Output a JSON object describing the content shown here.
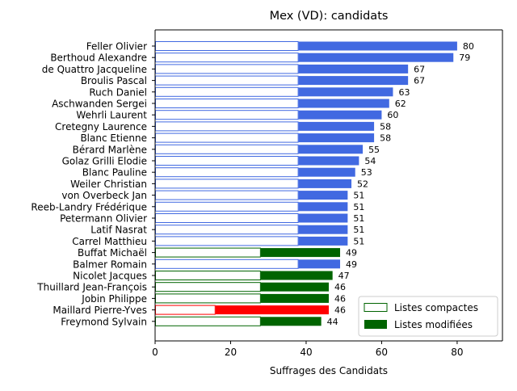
{
  "chart_data": {
    "type": "bar",
    "orientation": "horizontal",
    "stacked": true,
    "title": "Mex (VD): candidats",
    "xlabel": "Suffrages des Candidats",
    "ylabel": "",
    "xlim": [
      0,
      92
    ],
    "xticks": [
      0,
      20,
      40,
      60,
      80
    ],
    "grid": false,
    "legend_position": "bottom-right",
    "legend": [
      {
        "label": "Listes compactes",
        "style": "outline",
        "color": "#006400"
      },
      {
        "label": "Listes modifiées",
        "style": "filled",
        "color": "#006400"
      }
    ],
    "colors": {
      "blue": "#4169e1",
      "green": "#006400",
      "red": "#ff0000"
    },
    "categories": [
      "Feller Olivier",
      "Berthoud Alexandre",
      "de Quattro Jacqueline",
      "Broulis Pascal",
      "Ruch Daniel",
      "Aschwanden Sergei",
      "Wehrli Laurent",
      "Cretegny Laurence",
      "Blanc Etienne",
      "Bérard Marlène",
      "Golaz Grilli Elodie",
      "Blanc Pauline",
      "Weiler Christian",
      "von Overbeck Jan",
      "Reeb-Landry Frédérique",
      "Petermann Olivier",
      "Latif Nasrat",
      "Carrel Matthieu",
      "Buffat Michaël",
      "Balmer Romain",
      "Nicolet Jacques",
      "Thuillard Jean-François",
      "Jobin Philippe",
      "Maillard Pierre-Yves",
      "Freymond Sylvain"
    ],
    "series": [
      {
        "name": "Listes compactes",
        "values": [
          38,
          38,
          38,
          38,
          38,
          38,
          38,
          38,
          38,
          38,
          38,
          38,
          38,
          38,
          38,
          38,
          38,
          38,
          28,
          38,
          28,
          28,
          28,
          16,
          28
        ]
      },
      {
        "name": "Listes modifiées",
        "values": [
          42,
          41,
          29,
          29,
          25,
          24,
          22,
          20,
          20,
          17,
          16,
          15,
          14,
          13,
          13,
          13,
          13,
          13,
          21,
          11,
          19,
          18,
          18,
          30,
          16
        ]
      }
    ],
    "totals": [
      80,
      79,
      67,
      67,
      63,
      62,
      60,
      58,
      58,
      55,
      54,
      53,
      52,
      51,
      51,
      51,
      51,
      51,
      49,
      49,
      47,
      46,
      46,
      46,
      44
    ],
    "bar_colors": [
      "blue",
      "blue",
      "blue",
      "blue",
      "blue",
      "blue",
      "blue",
      "blue",
      "blue",
      "blue",
      "blue",
      "blue",
      "blue",
      "blue",
      "blue",
      "blue",
      "blue",
      "blue",
      "green",
      "blue",
      "green",
      "green",
      "green",
      "red",
      "green"
    ]
  }
}
